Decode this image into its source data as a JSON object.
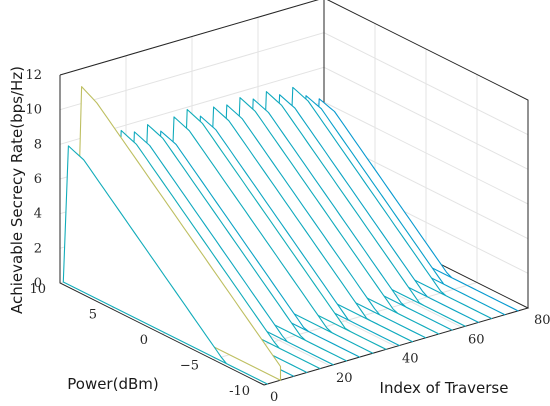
{
  "chart_data": {
    "type": "3d-waterfall",
    "title": "",
    "xlabel": "Index of Traverse",
    "ylabel": "Power(dBm)",
    "zlabel": "Achievable Secrecy Rate(bps/Hz)",
    "xlim": [
      0,
      80
    ],
    "ylim": [
      -10,
      10
    ],
    "zlim": [
      0,
      12
    ],
    "xticks": [
      "0",
      "20",
      "40",
      "60",
      "80"
    ],
    "yticks": [
      "-10",
      "−5",
      "0",
      "5",
      "10"
    ],
    "zticks": [
      "0",
      "2",
      "4",
      "6",
      "8",
      "10",
      "12"
    ],
    "grid": true,
    "colormap": "parula",
    "series_description": "one waterfall line per traverse index, rate vs power",
    "peaks": [
      {
        "x": 1,
        "peak": 8.0
      },
      {
        "x": 5,
        "peak": 11.2
      },
      {
        "x": 9,
        "peak": 7.5
      },
      {
        "x": 13,
        "peak": 7.9
      },
      {
        "x": 17,
        "peak": 8.0
      },
      {
        "x": 21,
        "peak": 7.7
      },
      {
        "x": 25,
        "peak": 7.9
      },
      {
        "x": 29,
        "peak": 7.3
      },
      {
        "x": 33,
        "peak": 7.9
      },
      {
        "x": 37,
        "peak": 8.1
      },
      {
        "x": 41,
        "peak": 7.5
      },
      {
        "x": 45,
        "peak": 7.8
      },
      {
        "x": 49,
        "peak": 7.7
      },
      {
        "x": 53,
        "peak": 7.9
      },
      {
        "x": 57,
        "peak": 7.6
      },
      {
        "x": 61,
        "peak": 7.8
      },
      {
        "x": 65,
        "peak": 7.4
      },
      {
        "x": 69,
        "peak": 7.6
      },
      {
        "x": 73,
        "peak": 6.9
      },
      {
        "x": 77,
        "peak": 6.5
      }
    ]
  }
}
